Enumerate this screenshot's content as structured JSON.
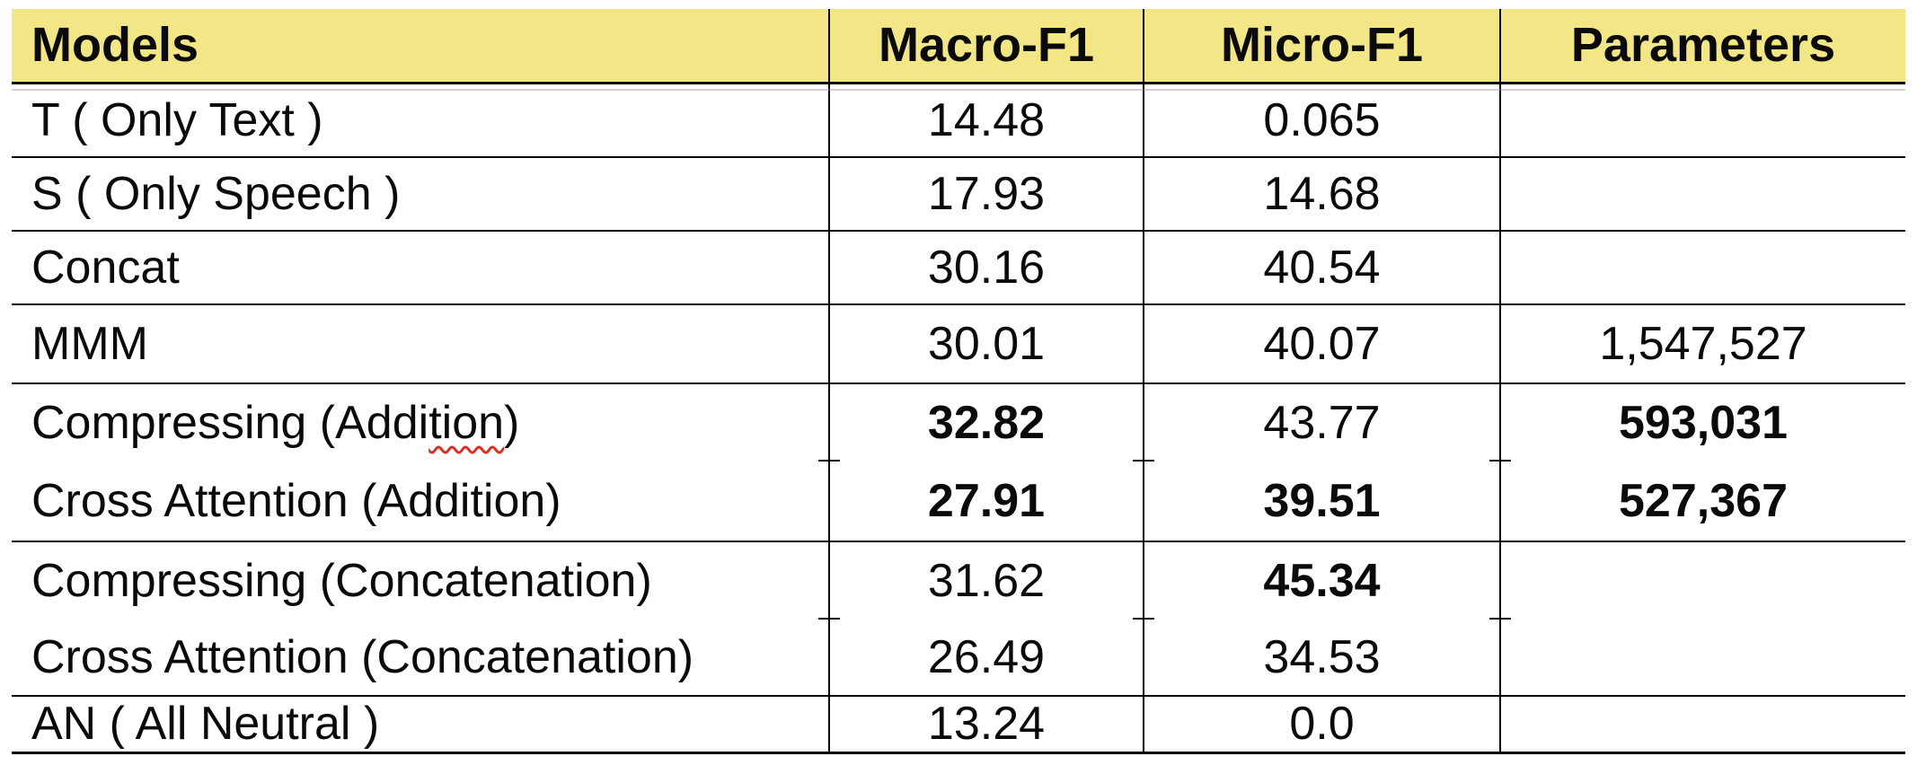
{
  "page": {
    "background": "#ffffff"
  },
  "table": {
    "title": "model-comparison-results",
    "header": {
      "bg_color": "#F3E687",
      "columns": [
        "Models",
        "Macro-F1",
        "Micro-F1",
        "Parameters"
      ]
    },
    "border_color": "#000000",
    "spellcheck_underline_color": "#D93025",
    "rows": [
      {
        "model": "T ( Only Text )",
        "macro_f1": "14.48",
        "micro_f1": "0.065",
        "parameters": "",
        "bold": [],
        "separator_after": true
      },
      {
        "model": "S ( Only Speech )",
        "macro_f1": "17.93",
        "micro_f1": "14.68",
        "parameters": "",
        "bold": [],
        "separator_after": true
      },
      {
        "model": "Concat",
        "macro_f1": "30.16",
        "micro_f1": "40.54",
        "parameters": "",
        "bold": [],
        "separator_after": true
      },
      {
        "model": "MMM",
        "macro_f1": "30.01",
        "micro_f1": "40.07",
        "parameters": "1,547,527",
        "bold": [],
        "separator_after": true
      },
      {
        "model": "Compressing (Addition)",
        "model_spellcheck": {
          "before": "Compressing (Addi",
          "wavy": "tion",
          "after": ")"
        },
        "macro_f1": "32.82",
        "micro_f1": "43.77",
        "parameters": "593,031",
        "bold": [
          "macro_f1",
          "parameters"
        ],
        "separator_after": false
      },
      {
        "model": "Cross Attention (Addition)",
        "macro_f1": "27.91",
        "micro_f1": "39.51",
        "parameters": "527,367",
        "bold": [
          "macro_f1",
          "micro_f1",
          "parameters"
        ],
        "separator_after": true
      },
      {
        "model": "Compressing (Concatenation)",
        "macro_f1": "31.62",
        "micro_f1": "45.34",
        "parameters": "",
        "bold": [
          "micro_f1"
        ],
        "separator_after": false
      },
      {
        "model": "Cross Attention (Concatenation)",
        "macro_f1": "26.49",
        "micro_f1": "34.53",
        "parameters": "",
        "bold": [],
        "separator_after": true
      },
      {
        "model": "AN ( All Neutral )",
        "macro_f1": "13.24",
        "micro_f1": "0.0",
        "parameters": "",
        "bold": [],
        "separator_after": true
      }
    ]
  },
  "chart_data": {
    "type": "table",
    "columns": [
      "Models",
      "Macro-F1",
      "Micro-F1",
      "Parameters"
    ],
    "rows": [
      [
        "T ( Only Text )",
        "14.48",
        "0.065",
        ""
      ],
      [
        "S ( Only Speech )",
        "17.93",
        "14.68",
        ""
      ],
      [
        "Concat",
        "30.16",
        "40.54",
        ""
      ],
      [
        "MMM",
        "30.01",
        "40.07",
        "1,547,527"
      ],
      [
        "Compressing (Addition)",
        "32.82",
        "43.77",
        "593,031"
      ],
      [
        "Cross Attention (Addition)",
        "27.91",
        "39.51",
        "527,367"
      ],
      [
        "Compressing (Concatenation)",
        "31.62",
        "45.34",
        ""
      ],
      [
        "Cross Attention (Concatenation)",
        "26.49",
        "34.53",
        ""
      ],
      [
        "AN ( All Neutral )",
        "13.24",
        "0.0",
        ""
      ]
    ],
    "bold_cells_note": "best results bolded: 32.82, 27.91, 39.51, 45.34, 593,031, 527,367"
  }
}
